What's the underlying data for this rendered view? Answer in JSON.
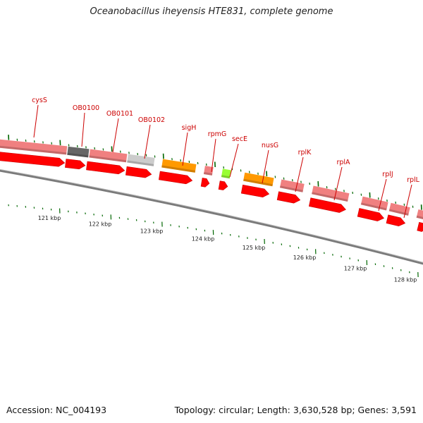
{
  "title": "Oceanobacillus iheyensis HTE831, complete genome",
  "footer": {
    "accession": "Accession: NC_004193",
    "summary": "Topology: circular; Length: 3,630,528 bp; Genes: 3,591"
  },
  "colors": {
    "cds_pink": "#f08080",
    "cds_pink_dark": "#c05050",
    "cds_gray_dark": "#666666",
    "cds_gray_light": "#cccccc",
    "cds_orange": "#ff9900",
    "cds_green": "#99ff33",
    "arrow_red": "#ff0000",
    "tick_green": "#006600",
    "backbone": "#888888",
    "label_red": "#cc0000"
  },
  "genes": [
    {
      "label": "cysS",
      "color": "pink"
    },
    {
      "label": "OB0100",
      "color": "gray_dark"
    },
    {
      "label": "OB0101",
      "color": "pink"
    },
    {
      "label": "OB0102",
      "color": "gray_light"
    },
    {
      "label": "sigH",
      "color": "orange"
    },
    {
      "label": "rpmG",
      "color": "pink"
    },
    {
      "label": "secE",
      "color": "green"
    },
    {
      "label": "nusG",
      "color": "orange"
    },
    {
      "label": "rplK",
      "color": "pink"
    },
    {
      "label": "rplA",
      "color": "pink"
    },
    {
      "label": "rplJ",
      "color": "pink"
    },
    {
      "label": "rplL",
      "color": "pink"
    }
  ],
  "kbp_ticks": [
    "121 kbp",
    "122 kbp",
    "123 kbp",
    "124 kbp",
    "125 kbp",
    "126 kbp",
    "127 kbp",
    "128 kbp"
  ]
}
